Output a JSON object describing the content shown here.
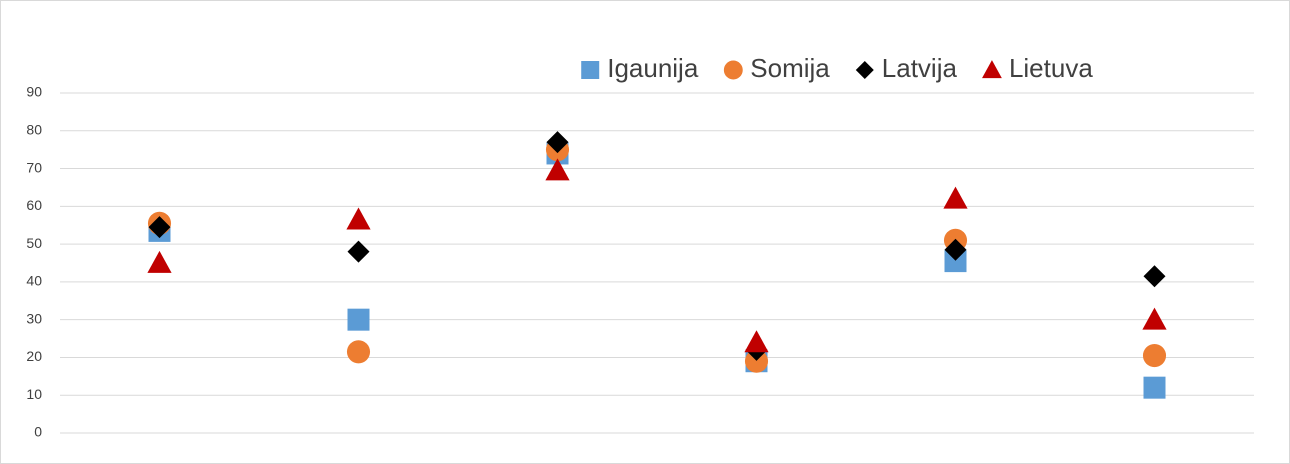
{
  "chart_data": {
    "type": "scatter",
    "categories": [
      null,
      null,
      null,
      null,
      null,
      null
    ],
    "series": [
      {
        "name": "Igaunija",
        "color": "#5b9bd5",
        "marker": "square",
        "values": [
          53.5,
          30,
          74,
          19,
          45.5,
          12
        ]
      },
      {
        "name": "Somija",
        "color": "#ed7d31",
        "marker": "circle",
        "values": [
          55.5,
          21.5,
          75,
          19,
          51,
          20.5
        ]
      },
      {
        "name": "Latvija",
        "color": "#000000",
        "marker": "diamond",
        "values": [
          54.5,
          48,
          77,
          22,
          48.5,
          41.5
        ]
      },
      {
        "name": "Lietuva",
        "color": "#c00000",
        "marker": "triangle",
        "values": [
          45,
          56.5,
          69.5,
          24,
          62,
          30
        ]
      }
    ],
    "ylim": [
      0,
      90
    ],
    "yticks": [
      0,
      10,
      20,
      30,
      40,
      50,
      60,
      70,
      80,
      90
    ],
    "grid": true,
    "legend": "top"
  }
}
